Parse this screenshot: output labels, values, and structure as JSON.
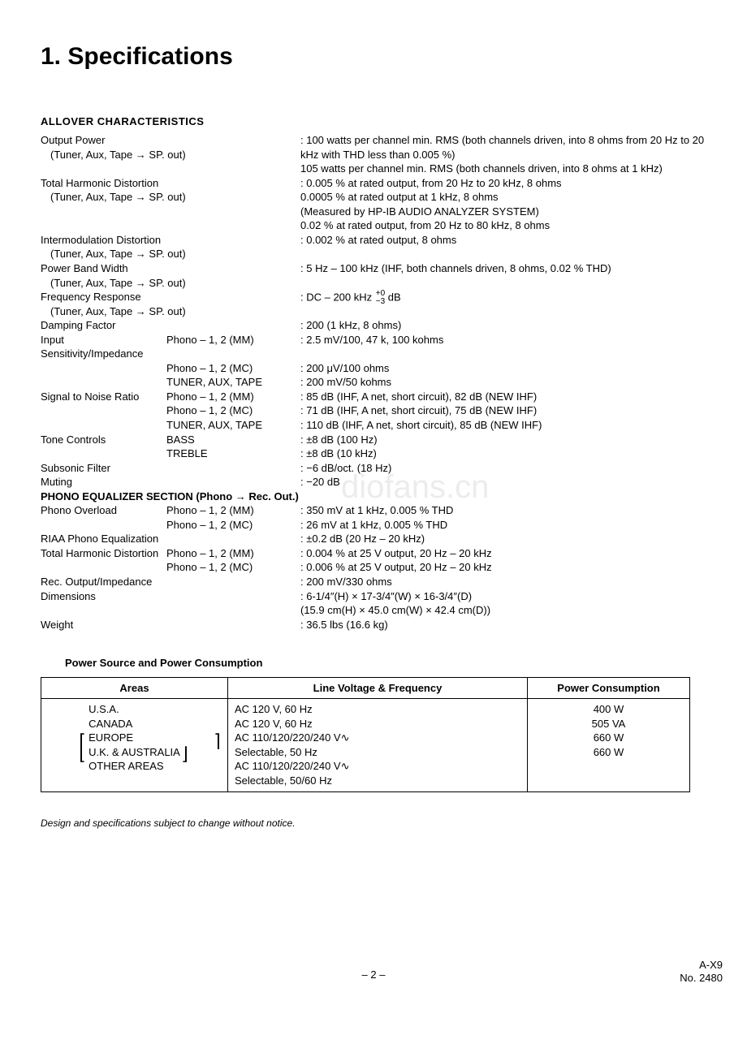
{
  "page": {
    "title": "1. Specifications",
    "section_allover": "ALLOVER CHARACTERISTICS",
    "notice": "Design and specifications subject to change without notice.",
    "footer_page": "– 2 –",
    "footer_model": "A-X9",
    "footer_no": "No. 2480",
    "watermark": "diofans.cn"
  },
  "specs": [
    {
      "label": "Output Power",
      "sub": "(Tuner, Aux, Tape → SP. out)",
      "values": [
        "100 watts per channel min. RMS (both channels driven, into 8 ohms from 20 Hz to 20 kHz with THD less than 0.005 %)",
        "105 watts per channel min. RMS (both channels driven, into 8 ohms at 1 kHz)"
      ]
    },
    {
      "label": "Total Harmonic Distortion",
      "sub": "(Tuner, Aux, Tape → SP. out)",
      "values": [
        "0.005 % at rated output, from 20 Hz to 20 kHz, 8 ohms",
        "0.0005 % at rated output at 1 kHz, 8 ohms",
        "(Measured by HP-IB AUDIO ANALYZER SYSTEM)",
        "0.02 % at rated output, from 20 Hz to 80 kHz, 8 ohms"
      ]
    },
    {
      "label": "Intermodulation Distortion",
      "sub": "(Tuner, Aux, Tape → SP. out)",
      "values": [
        "0.002 % at rated output, 8 ohms"
      ]
    },
    {
      "label": "Power Band Width",
      "sub": "(Tuner, Aux, Tape → SP. out)",
      "values": [
        "5 Hz – 100 kHz (IHF, both channels driven, 8 ohms, 0.02 % THD)"
      ]
    },
    {
      "label": "Frequency Response",
      "sub": "(Tuner, Aux, Tape → SP. out)",
      "freq": {
        "pre": "DC – 200 kHz ",
        "top": "+0",
        "bot": "−3",
        "post": " dB"
      }
    },
    {
      "label": "Damping Factor",
      "values": [
        "200 (1 kHz, 8 ohms)"
      ]
    },
    {
      "label": "Input Sensitivity/Impedance",
      "rows": [
        {
          "mid": "Phono – 1, 2 (MM)",
          "val": "2.5 mV/100, 47 k, 100 kohms"
        },
        {
          "mid": "Phono – 1, 2 (MC)",
          "val": "200 μV/100 ohms"
        },
        {
          "mid": "TUNER, AUX, TAPE",
          "val": "200 mV/50 kohms"
        }
      ]
    },
    {
      "label": "Signal to Noise Ratio",
      "rows": [
        {
          "mid": "Phono – 1, 2 (MM)",
          "val": "85 dB (IHF, A net, short circuit), 82 dB (NEW IHF)"
        },
        {
          "mid": "Phono – 1, 2 (MC)",
          "val": "71 dB (IHF, A net, short circuit), 75 dB (NEW IHF)"
        },
        {
          "mid": "TUNER, AUX, TAPE",
          "val": "110 dB (IHF, A net, short circuit), 85 dB (NEW IHF)"
        }
      ]
    },
    {
      "label": "Tone Controls",
      "rows": [
        {
          "mid": "BASS",
          "val": "±8 dB (100 Hz)"
        },
        {
          "mid": "TREBLE",
          "val": "±8 dB (10 kHz)"
        }
      ]
    },
    {
      "label": "Subsonic Filter",
      "values": [
        "−6 dB/oct. (18 Hz)"
      ]
    },
    {
      "label": "Muting",
      "values": [
        "−20 dB"
      ]
    }
  ],
  "phono_eq_title": "PHONO EQUALIZER SECTION (Phono → Rec. Out.)",
  "phono_eq": [
    {
      "label": "Phono Overload",
      "rows": [
        {
          "mid": "Phono – 1, 2 (MM)",
          "val": "350 mV at 1 kHz, 0.005 % THD"
        },
        {
          "mid": "Phono – 1, 2 (MC)",
          "val": "26 mV at 1 kHz, 0.005 % THD"
        }
      ]
    },
    {
      "label": "RIAA Phono Equalization",
      "values": [
        "±0.2 dB (20 Hz – 20 kHz)"
      ]
    },
    {
      "label": "Total Harmonic Distortion",
      "rows": [
        {
          "mid": "Phono – 1, 2 (MM)",
          "val": "0.004 % at 25 V output, 20 Hz – 20 kHz"
        },
        {
          "mid": "Phono – 1, 2 (MC)",
          "val": "0.006 % at 25 V output, 20 Hz – 20 kHz"
        }
      ]
    },
    {
      "label": "Rec. Output/Impedance",
      "values": [
        "200 mV/330 ohms"
      ]
    },
    {
      "label": "Dimensions",
      "values": [
        "6-1/4″(H) × 17-3/4″(W) × 16-3/4″(D)",
        "(15.9 cm(H) × 45.0 cm(W) × 42.4 cm(D))"
      ]
    },
    {
      "label": "Weight",
      "values": [
        "36.5 lbs (16.6 kg)"
      ]
    }
  ],
  "power_section": {
    "heading": "Power Source and Power Consumption",
    "headers": [
      "Areas",
      "Line Voltage & Frequency",
      "Power Consumption"
    ],
    "rows": [
      {
        "area": "U.S.A.",
        "voltage": "AC 120 V, 60 Hz",
        "consumption": "400 W"
      },
      {
        "area": "CANADA",
        "voltage": "AC 120 V, 60 Hz",
        "consumption": "505 VA"
      },
      {
        "area": "EUROPE",
        "voltage": "AC 110/120/220/240 V∿",
        "consumption": "660 W"
      },
      {
        "area": "U.K. & AUSTRALIA",
        "voltage": "Selectable, 50 Hz",
        "consumption": ""
      },
      {
        "area": "OTHER AREAS",
        "voltage": "AC 110/120/220/240 V∿",
        "consumption": "660 W"
      },
      {
        "area": "",
        "voltage": "Selectable, 50/60 Hz",
        "consumption": ""
      }
    ]
  }
}
